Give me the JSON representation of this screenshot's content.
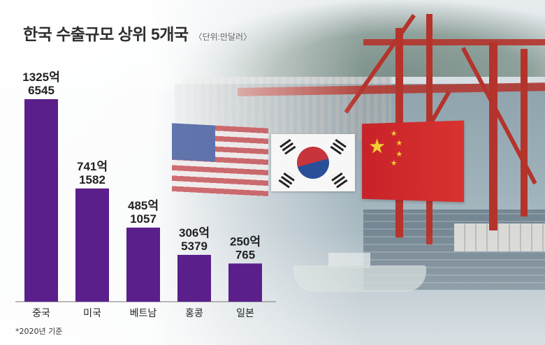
{
  "chart_data": {
    "type": "bar",
    "title": "한국 수출규모 상위 5개국",
    "unit_label": "〈단위:만달러〉",
    "categories": [
      "중국",
      "미국",
      "베트남",
      "홍콩",
      "일본"
    ],
    "values": [
      13256545,
      7411582,
      4851057,
      3065379,
      2500765
    ],
    "value_labels": [
      {
        "line1": "1325억",
        "line2": "6545"
      },
      {
        "line1": "741억",
        "line2": "1582"
      },
      {
        "line1": "485억",
        "line2": "1057"
      },
      {
        "line1": "306억",
        "line2": "5379"
      },
      {
        "line1": "250억",
        "line2": "765"
      }
    ],
    "ylim": [
      0,
      13256545
    ],
    "bar_color": "#5a1f8a",
    "note": "*2020년 기준",
    "grid": false
  }
}
